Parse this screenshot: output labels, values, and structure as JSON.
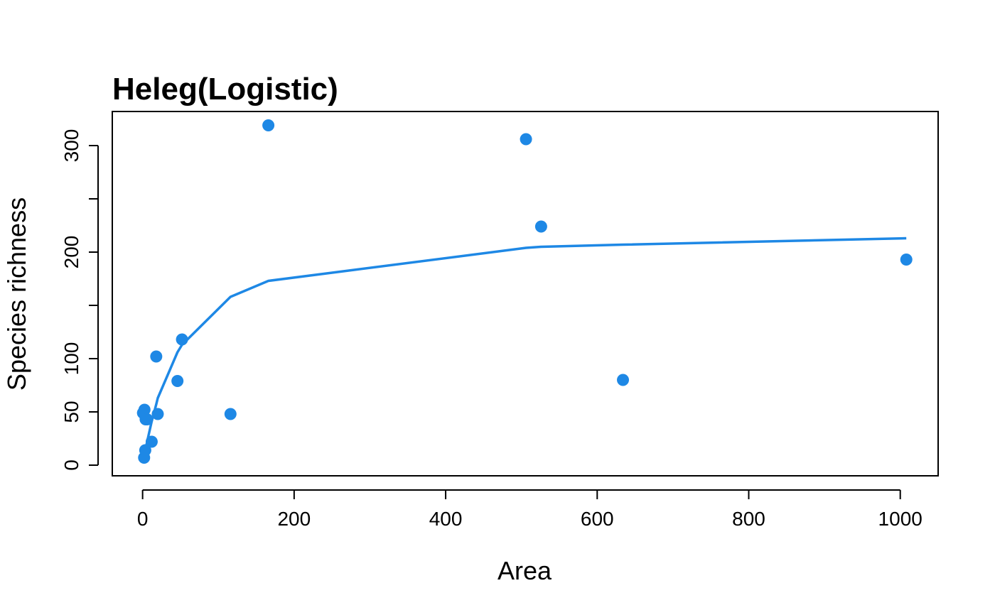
{
  "chart_data": {
    "type": "scatter",
    "title": "Heleg(Logistic)",
    "xlabel": "Area",
    "ylabel": "Species richness",
    "xlim": [
      -40,
      1050
    ],
    "ylim": [
      -10,
      332
    ],
    "x_ticks": [
      0,
      200,
      400,
      600,
      800,
      1000
    ],
    "y_ticks": [
      0,
      50,
      100,
      150,
      200,
      250,
      300
    ],
    "y_tick_labels": [
      "0",
      "50",
      "100",
      "",
      "200",
      "",
      "300"
    ],
    "grid": false,
    "legend": "none",
    "color": "#1e88e5",
    "series": [
      {
        "type": "points",
        "x": [
          0.5,
          2,
          2.5,
          3.5,
          4,
          6,
          12,
          18,
          20,
          46,
          52,
          116,
          166,
          506,
          526,
          634,
          1008
        ],
        "y": [
          49,
          7,
          52,
          14,
          43,
          43,
          22,
          102,
          48,
          79,
          118,
          48,
          319,
          306,
          224,
          80,
          193
        ]
      },
      {
        "type": "line",
        "x": [
          0.5,
          2,
          2.5,
          3.5,
          4,
          6,
          12,
          18,
          20,
          46,
          52,
          116,
          166,
          506,
          526,
          634,
          1008
        ],
        "y": [
          4,
          8,
          10,
          13,
          15,
          22,
          41,
          57,
          63,
          106,
          113,
          158,
          173,
          204,
          205,
          207,
          213
        ]
      }
    ]
  }
}
